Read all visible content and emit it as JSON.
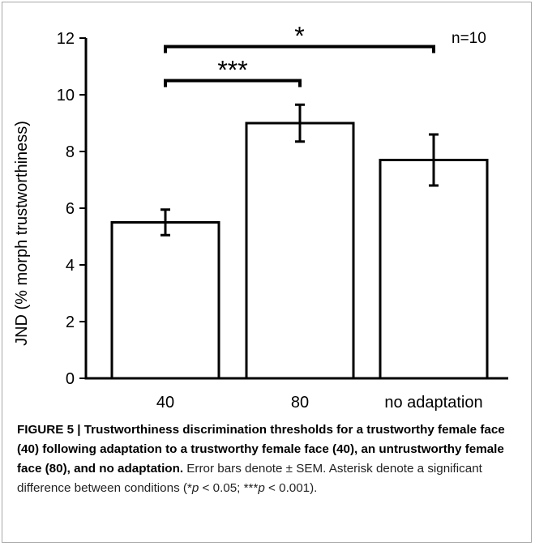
{
  "chart_data": {
    "type": "bar",
    "categories": [
      "40",
      "80",
      "no adaptation"
    ],
    "values": [
      5.5,
      9.0,
      7.7
    ],
    "errors": [
      0.45,
      0.65,
      0.9
    ],
    "title": "",
    "xlabel": "",
    "ylabel": "JND (% morph trustworthiness)",
    "ylim": [
      0,
      12
    ],
    "yticks": [
      "0",
      "2",
      "4",
      "6",
      "8",
      "10",
      "12"
    ],
    "grid": false,
    "annotations": {
      "n": "n=10",
      "comparisons": [
        {
          "from": "40",
          "to": "80",
          "label": "***",
          "level": 10.5
        },
        {
          "from": "40",
          "to": "no adaptation",
          "label": "*",
          "level": 11.7
        }
      ]
    },
    "colors": {
      "bar_fill": "#ffffff",
      "bar_stroke": "#000000",
      "axis": "#000000"
    }
  },
  "caption": {
    "figure_label": "FIGURE 5 | ",
    "title": "Trustworthiness discrimination thresholds for a trustworthy female face (40) following adaptation to a trustworthy female face (40), an untrustworthy female face (80), and no adaptation.",
    "body_1": " Error bars denote ± SEM. Asterisk denote a significant difference between conditions (*",
    "p": "p",
    "body_2": " < 0.05; ***",
    "body_3": " < 0.001)."
  }
}
